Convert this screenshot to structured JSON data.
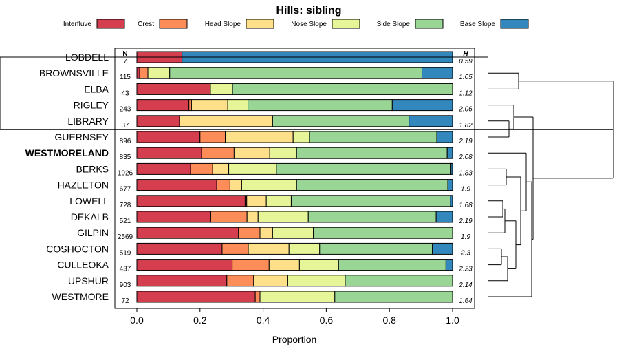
{
  "chart_data": {
    "type": "bar",
    "subtype": "stacked-horizontal-proportion",
    "title": "Hills: sibling",
    "xlabel": "Proportion",
    "ylabel": "",
    "xlim": [
      0,
      1
    ],
    "xticks": [
      "0.0",
      "0.2",
      "0.4",
      "0.6",
      "0.8",
      "1.0"
    ],
    "n_header": "N",
    "h_header": "H",
    "highlighted": "WESTMORELAND",
    "legend": [
      {
        "name": "Interfluve",
        "color": "#d53e4f"
      },
      {
        "name": "Crest",
        "color": "#fc8d59"
      },
      {
        "name": "Head Slope",
        "color": "#fee08b"
      },
      {
        "name": "Nose Slope",
        "color": "#e6f598"
      },
      {
        "name": "Side Slope",
        "color": "#99d594"
      },
      {
        "name": "Base Slope",
        "color": "#3288bd"
      }
    ],
    "categories": [
      "LOBDELL",
      "BROWNSVILLE",
      "ELBA",
      "RIGLEY",
      "LIBRARY",
      "GUERNSEY",
      "WESTMORELAND",
      "BERKS",
      "HAZLETON",
      "LOWELL",
      "DEKALB",
      "GILPIN",
      "COSHOCTON",
      "CULLEOKA",
      "UPSHUR",
      "WESTMORE"
    ],
    "n": [
      "7",
      "115",
      "43",
      "243",
      "37",
      "896",
      "835",
      "1926",
      "677",
      "728",
      "521",
      "2569",
      "519",
      "437",
      "903",
      "72"
    ],
    "h": [
      "0.59",
      "1.05",
      "1.12",
      "2.06",
      "1.82",
      "2.19",
      "2.08",
      "1.83",
      "1.9",
      "1.68",
      "2.19",
      "1.9",
      "2.3",
      "2.23",
      "2.14",
      "1.64"
    ],
    "series": [
      {
        "name": "Interfluve",
        "values": [
          0.143,
          0.009,
          0.233,
          0.165,
          0.135,
          0.2,
          0.205,
          0.17,
          0.253,
          0.343,
          0.234,
          0.322,
          0.27,
          0.302,
          0.285,
          0.375
        ]
      },
      {
        "name": "Crest",
        "values": [
          0,
          0.026,
          0,
          0.008,
          0,
          0.08,
          0.103,
          0.07,
          0.042,
          0.005,
          0.115,
          0.068,
          0.083,
          0.117,
          0.085,
          0.015
        ]
      },
      {
        "name": "Head Slope",
        "values": [
          0,
          0,
          0,
          0.115,
          0.295,
          0.215,
          0.113,
          0.051,
          0.037,
          0.062,
          0.035,
          0.04,
          0.129,
          0.096,
          0.108,
          0
        ]
      },
      {
        "name": "Nose Slope",
        "values": [
          0,
          0.069,
          0.07,
          0.064,
          0,
          0.052,
          0.085,
          0.151,
          0.174,
          0.079,
          0.159,
          0.129,
          0.097,
          0.124,
          0.182,
          0.237
        ]
      },
      {
        "name": "Side Slope",
        "values": [
          0,
          0.799,
          0.697,
          0.457,
          0.432,
          0.403,
          0.477,
          0.553,
          0.479,
          0.504,
          0.405,
          0.441,
          0.357,
          0.34,
          0.34,
          0.373
        ]
      },
      {
        "name": "Base Slope",
        "values": [
          0.857,
          0.097,
          0,
          0.191,
          0.138,
          0.05,
          0.017,
          0.005,
          0.015,
          0.007,
          0.052,
          0,
          0.064,
          0.021,
          0,
          0
        ]
      }
    ],
    "dendrogram_merge_order": [
      [
        "BROWNSVILLE",
        "ELBA"
      ],
      [
        "LIBRARY",
        "GUERNSEY"
      ],
      [
        "RIGLEY",
        "LIBRARY+GUERNSEY"
      ],
      [
        "COSHOCTON",
        "CULLEOKA"
      ],
      [
        "COSHOCTON+CULLEOKA",
        "UPSHUR"
      ],
      [
        "BERKS",
        "HAZLETON"
      ],
      [
        "LOWELL",
        "DEKALB"
      ],
      [
        "LOWELL+DEKALB",
        "GILPIN"
      ],
      [
        "LOWELL+DEKALB+GILPIN",
        "COSHOCTON+CULLEOKA+UPSHUR"
      ],
      [
        "BERKS+HAZLETON",
        "LOWELL...UPSHUR"
      ],
      [
        "WESTMORELAND",
        "BERKS...UPSHUR"
      ],
      [
        "WESTMORELAND...UPSHUR",
        "WESTMORE"
      ],
      [
        "RIGLEY+LIBRARY+GUERNSEY",
        "WESTMORELAND...WESTMORE"
      ],
      [
        "BROWNSVILLE+ELBA",
        "RIGLEY...WESTMORE"
      ],
      [
        "LOBDELL",
        "BROWNSVILLE...WESTMORE"
      ]
    ]
  }
}
